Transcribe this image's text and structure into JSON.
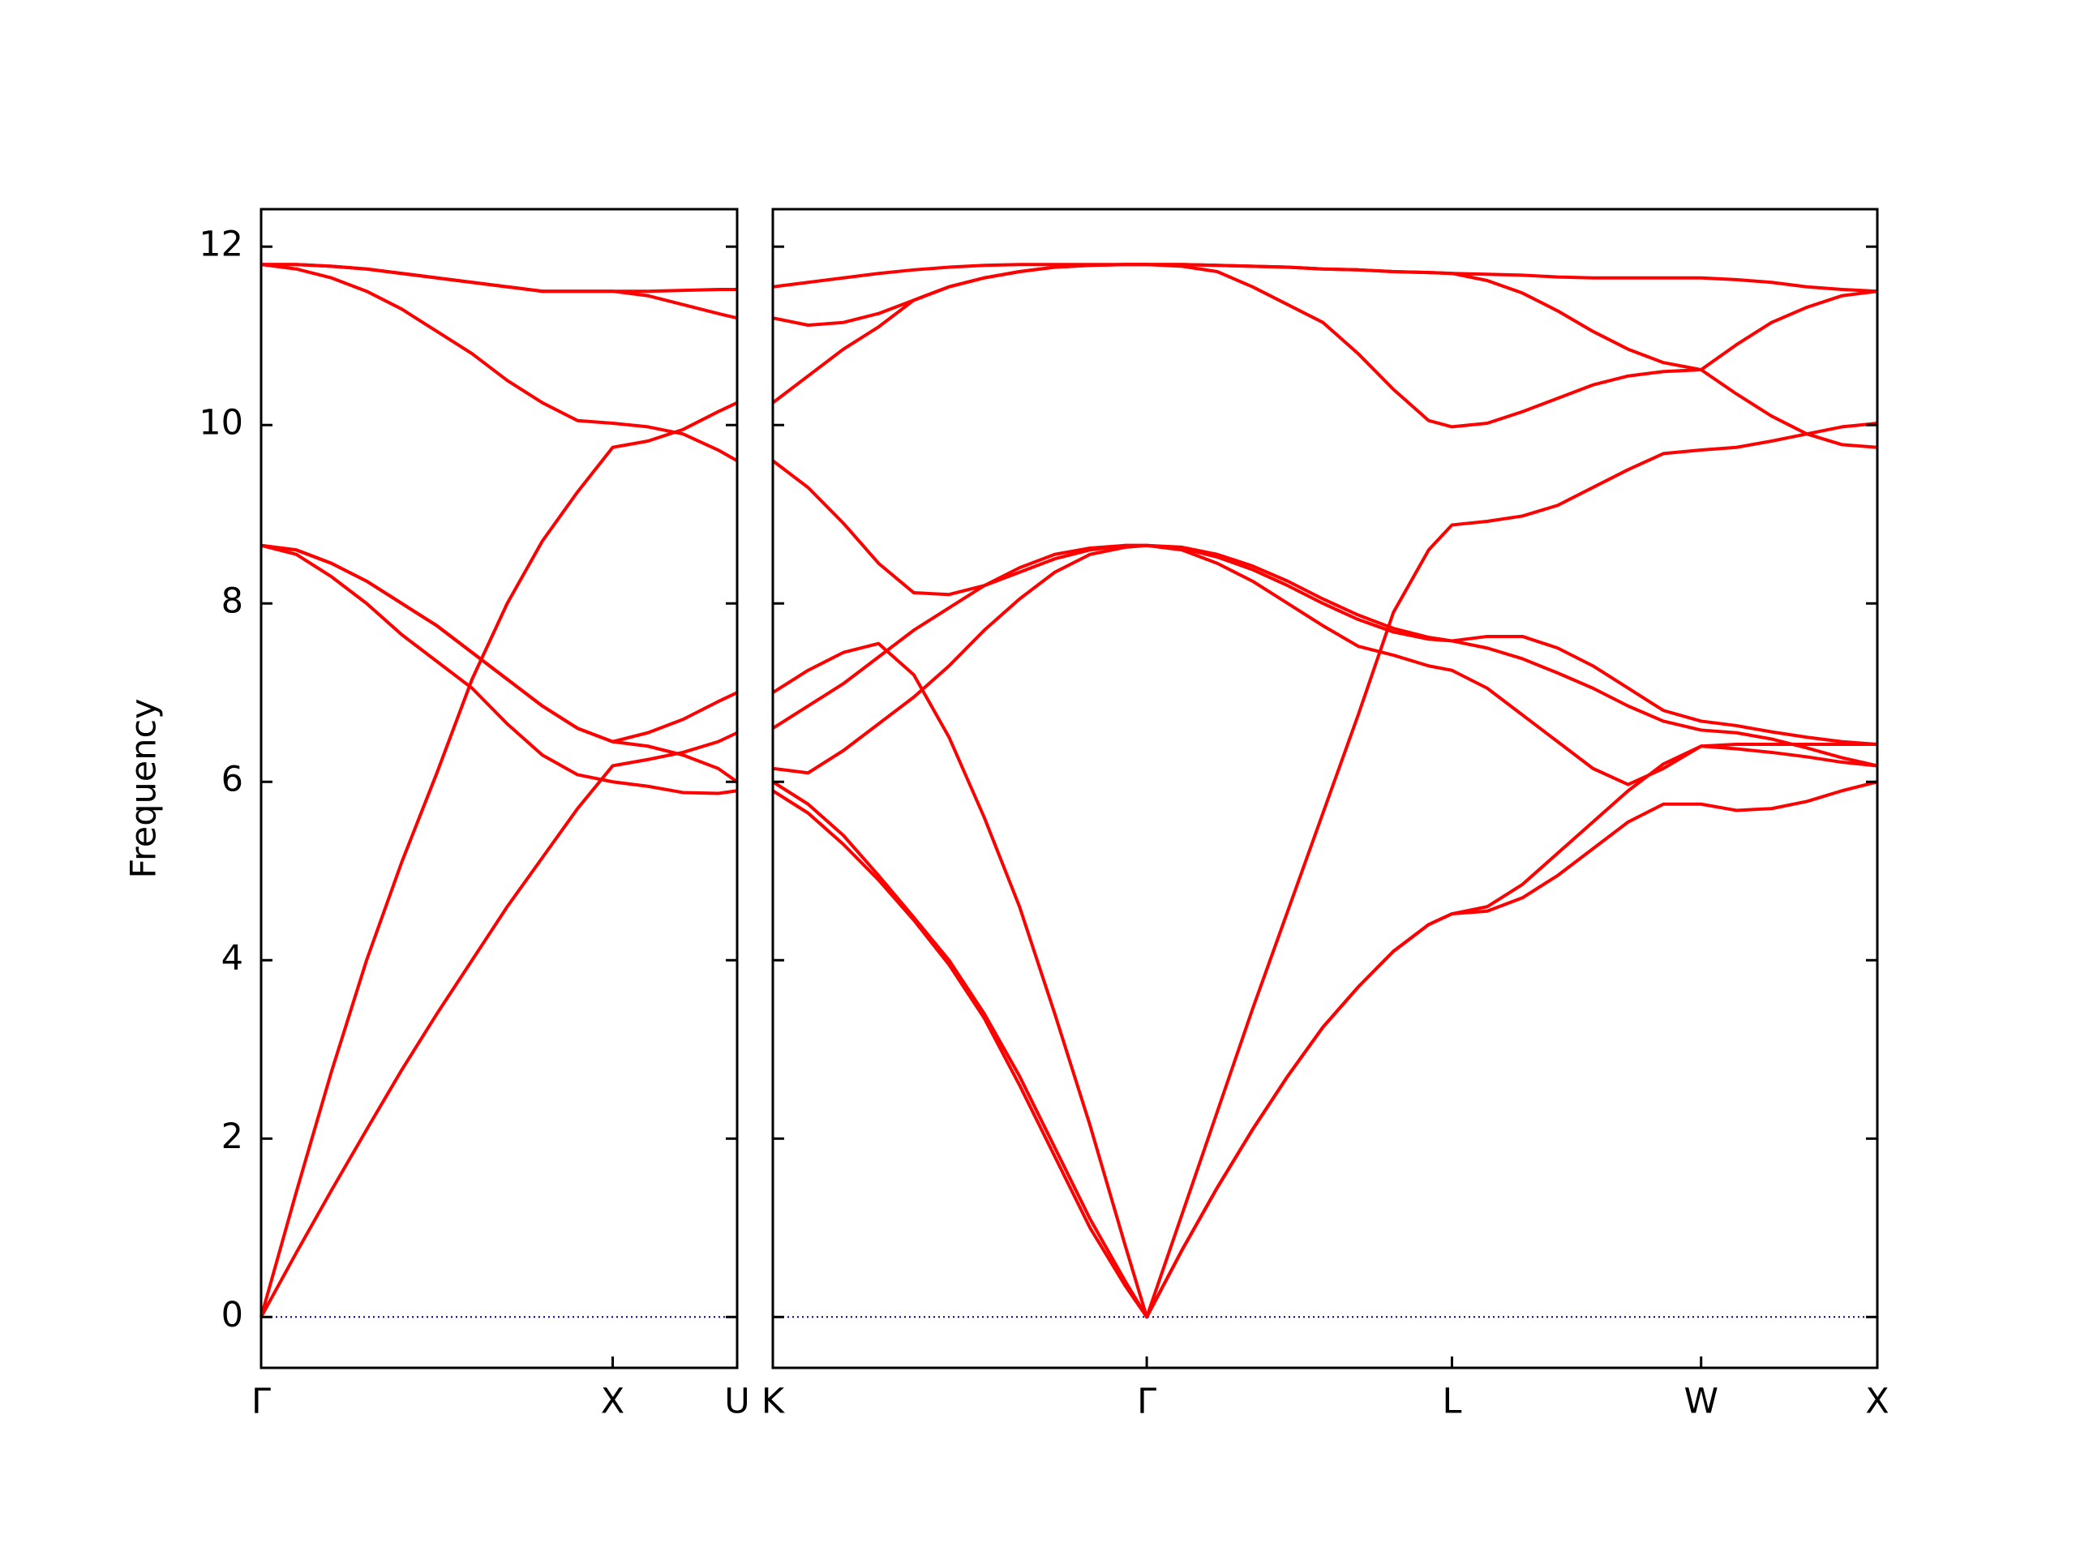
{
  "chart_data": [
    {
      "type": "line",
      "ylabel": "Frequency",
      "color": "#ff0000",
      "xlim": [
        0,
        1.354
      ],
      "ylim": [
        -0.57,
        12.42
      ],
      "xticks": [
        {
          "value": 0,
          "label": "Γ"
        },
        {
          "value": 1,
          "label": "X"
        },
        {
          "value": 1.354,
          "label": "U"
        }
      ],
      "yticks": [
        0,
        2,
        4,
        6,
        8,
        10,
        12
      ],
      "reference_line": 0,
      "reference_color": "#00008b",
      "x": [
        0,
        0.1,
        0.2,
        0.3,
        0.4,
        0.5,
        0.6,
        0.7,
        0.8,
        0.9,
        1.0,
        1.1,
        1.2,
        1.3,
        1.354
      ],
      "series": [
        {
          "values": [
            0,
            0.72,
            1.42,
            2.1,
            2.77,
            3.4,
            4.0,
            4.6,
            5.15,
            5.7,
            6.18,
            6.25,
            6.33,
            6.45,
            6.55
          ]
        },
        {
          "values": [
            0,
            1.4,
            2.75,
            4.0,
            5.1,
            6.1,
            7.15,
            8.0,
            8.7,
            9.25,
            9.75,
            9.82,
            9.95,
            10.15,
            10.25
          ]
        },
        {
          "values": [
            8.65,
            8.55,
            8.3,
            8.0,
            7.65,
            7.35,
            7.05,
            6.65,
            6.3,
            6.08,
            6.0,
            5.95,
            5.88,
            5.87,
            5.9
          ]
        },
        {
          "values": [
            8.65,
            8.6,
            8.45,
            8.25,
            8.0,
            7.75,
            7.45,
            7.15,
            6.85,
            6.6,
            6.45,
            6.55,
            6.7,
            6.9,
            7.0
          ]
        },
        {
          "values": [
            8.65,
            8.6,
            8.45,
            8.25,
            8.0,
            7.75,
            7.45,
            7.15,
            6.85,
            6.6,
            6.45,
            6.4,
            6.3,
            6.15,
            6.0
          ]
        },
        {
          "values": [
            11.8,
            11.75,
            11.65,
            11.5,
            11.3,
            11.05,
            10.8,
            10.5,
            10.25,
            10.05,
            10.02,
            9.98,
            9.9,
            9.72,
            9.6
          ]
        },
        {
          "values": [
            11.8,
            11.8,
            11.78,
            11.75,
            11.7,
            11.65,
            11.6,
            11.55,
            11.5,
            11.5,
            11.5,
            11.45,
            11.35,
            11.25,
            11.2
          ]
        },
        {
          "values": [
            11.8,
            11.8,
            11.78,
            11.75,
            11.7,
            11.65,
            11.6,
            11.55,
            11.5,
            11.5,
            11.5,
            11.5,
            11.51,
            11.52,
            11.52
          ]
        }
      ]
    },
    {
      "type": "line",
      "color": "#ff0000",
      "xlim": [
        0,
        3.134
      ],
      "ylim": [
        -0.57,
        12.42
      ],
      "xticks": [
        {
          "value": 0,
          "label": "K"
        },
        {
          "value": 1.061,
          "label": "Γ"
        },
        {
          "value": 1.927,
          "label": "L"
        },
        {
          "value": 2.634,
          "label": "W"
        },
        {
          "value": 3.134,
          "label": "X"
        }
      ],
      "yticks": [
        0,
        2,
        4,
        6,
        8,
        10,
        12
      ],
      "reference_line": 0,
      "reference_color": "#00008b",
      "x": [
        0,
        0.1,
        0.2,
        0.3,
        0.4,
        0.5,
        0.6,
        0.7,
        0.8,
        0.9,
        1.0,
        1.061,
        1.161,
        1.261,
        1.361,
        1.461,
        1.561,
        1.661,
        1.761,
        1.861,
        1.927,
        2.027,
        2.127,
        2.227,
        2.327,
        2.427,
        2.527,
        2.634,
        2.734,
        2.834,
        2.934,
        3.034,
        3.134
      ],
      "series": [
        {
          "values": [
            5.9,
            5.65,
            5.3,
            4.9,
            4.45,
            3.95,
            3.35,
            2.6,
            1.8,
            1.0,
            0.35,
            0,
            0.75,
            1.45,
            2.1,
            2.7,
            3.25,
            3.7,
            4.1,
            4.4,
            4.52,
            4.55,
            4.7,
            4.95,
            5.25,
            5.55,
            5.75,
            5.75,
            5.68,
            5.7,
            5.78,
            5.9,
            6.0
          ]
        },
        {
          "values": [
            6.0,
            5.75,
            5.4,
            4.95,
            4.48,
            4.0,
            3.4,
            2.7,
            1.9,
            1.1,
            0.4,
            0,
            0.75,
            1.45,
            2.1,
            2.7,
            3.25,
            3.7,
            4.1,
            4.4,
            4.52,
            4.6,
            4.85,
            5.2,
            5.55,
            5.9,
            6.2,
            6.4,
            6.37,
            6.33,
            6.28,
            6.22,
            6.18
          ]
        },
        {
          "values": [
            7.0,
            7.25,
            7.45,
            7.55,
            7.2,
            6.5,
            5.6,
            4.6,
            3.4,
            2.15,
            0.8,
            0,
            1.15,
            2.3,
            3.45,
            4.55,
            5.65,
            6.75,
            7.9,
            8.6,
            8.88,
            8.92,
            8.98,
            9.1,
            9.3,
            9.5,
            9.68,
            9.72,
            9.75,
            9.82,
            9.9,
            9.98,
            10.02
          ]
        },
        {
          "values": [
            6.15,
            6.1,
            6.35,
            6.65,
            6.95,
            7.3,
            7.7,
            8.05,
            8.35,
            8.55,
            8.63,
            8.65,
            8.6,
            8.45,
            8.25,
            8.0,
            7.75,
            7.52,
            7.42,
            7.3,
            7.25,
            7.05,
            6.75,
            6.45,
            6.15,
            5.97,
            6.15,
            6.4,
            6.42,
            6.42,
            6.42,
            6.42,
            6.42
          ]
        },
        {
          "values": [
            6.6,
            6.85,
            7.1,
            7.4,
            7.7,
            7.95,
            8.2,
            8.4,
            8.55,
            8.62,
            8.65,
            8.65,
            8.62,
            8.52,
            8.38,
            8.2,
            8.0,
            7.82,
            7.68,
            7.6,
            7.58,
            7.5,
            7.38,
            7.22,
            7.05,
            6.85,
            6.68,
            6.58,
            6.55,
            6.48,
            6.38,
            6.27,
            6.18
          ]
        },
        {
          "values": [
            9.6,
            9.3,
            8.9,
            8.45,
            8.12,
            8.1,
            8.2,
            8.35,
            8.5,
            8.6,
            8.65,
            8.65,
            8.63,
            8.55,
            8.42,
            8.25,
            8.05,
            7.87,
            7.72,
            7.62,
            7.58,
            7.63,
            7.63,
            7.5,
            7.3,
            7.05,
            6.8,
            6.68,
            6.63,
            6.56,
            6.5,
            6.45,
            6.42
          ]
        },
        {
          "values": [
            10.25,
            10.55,
            10.85,
            11.1,
            11.4,
            11.55,
            11.65,
            11.72,
            11.77,
            11.79,
            11.8,
            11.8,
            11.78,
            11.72,
            11.55,
            11.35,
            11.15,
            10.8,
            10.4,
            10.05,
            9.98,
            10.02,
            10.15,
            10.3,
            10.45,
            10.55,
            10.6,
            10.62,
            10.9,
            11.15,
            11.32,
            11.45,
            11.5
          ]
        },
        {
          "values": [
            11.2,
            11.12,
            11.15,
            11.25,
            11.4,
            11.55,
            11.65,
            11.72,
            11.77,
            11.79,
            11.8,
            11.8,
            11.8,
            11.79,
            11.78,
            11.77,
            11.75,
            11.74,
            11.72,
            11.71,
            11.7,
            11.62,
            11.48,
            11.28,
            11.05,
            10.85,
            10.7,
            10.62,
            10.35,
            10.1,
            9.9,
            9.78,
            9.75
          ]
        },
        {
          "values": [
            11.55,
            11.6,
            11.65,
            11.7,
            11.74,
            11.77,
            11.79,
            11.8,
            11.8,
            11.8,
            11.8,
            11.8,
            11.8,
            11.79,
            11.78,
            11.77,
            11.75,
            11.74,
            11.72,
            11.71,
            11.7,
            11.69,
            11.68,
            11.66,
            11.65,
            11.65,
            11.65,
            11.65,
            11.63,
            11.6,
            11.55,
            11.52,
            11.5
          ]
        }
      ]
    }
  ]
}
